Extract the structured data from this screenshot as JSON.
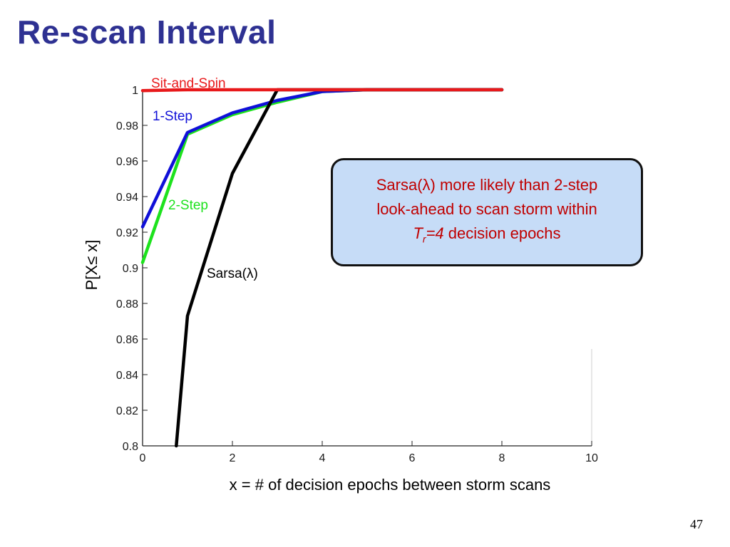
{
  "slide": {
    "title": "Re-scan Interval",
    "page_number": "47"
  },
  "callout": {
    "line1": "Sarsa(λ) more likely than 2-step",
    "line2": "look-ahead to scan storm within",
    "line3_T": "T",
    "line3_sub": "r",
    "line3_eq": "=4",
    "line3_rest": " decision epochs"
  },
  "chart_data": {
    "type": "line",
    "title": "",
    "xlabel": "x = # of decision epochs between storm scans",
    "ylabel": "P[X≤ x]",
    "xlim": [
      0,
      10
    ],
    "ylim": [
      0.8,
      1.0
    ],
    "xticks": [
      0,
      2,
      4,
      6,
      8,
      10
    ],
    "yticks": [
      0.8,
      0.82,
      0.84,
      0.86,
      0.88,
      0.9,
      0.92,
      0.94,
      0.96,
      0.98,
      1
    ],
    "ytick_labels": [
      "0.8",
      "0.82",
      "0.84",
      "0.86",
      "0.88",
      "0.9",
      "0.92",
      "0.94",
      "0.96",
      "0.98",
      "1"
    ],
    "grid": false,
    "legend": "inline labels",
    "series": [
      {
        "name": "Sit-and-Spin",
        "color": "#e8191b",
        "x": [
          0,
          1,
          2,
          3,
          4,
          5,
          6,
          7,
          8
        ],
        "y": [
          0.9995,
          1,
          1,
          1,
          1,
          1,
          1,
          1,
          1
        ]
      },
      {
        "name": "1-Step",
        "color": "#1010d8",
        "x": [
          0,
          1,
          2,
          3,
          4,
          5,
          6,
          7,
          8
        ],
        "y": [
          0.923,
          0.976,
          0.987,
          0.994,
          0.999,
          1,
          1,
          1,
          1
        ]
      },
      {
        "name": "2-Step",
        "color": "#1de21d",
        "x": [
          0,
          1,
          2,
          3,
          4,
          5,
          6,
          7,
          8
        ],
        "y": [
          0.903,
          0.975,
          0.986,
          0.993,
          0.999,
          1,
          1,
          1,
          1
        ]
      },
      {
        "name": "Sarsa(λ)",
        "color": "#000000",
        "x": [
          0.75,
          1,
          2,
          3,
          4,
          5,
          6,
          7,
          8
        ],
        "y": [
          0.8,
          0.873,
          0.953,
          1,
          1,
          1,
          1,
          1,
          1
        ]
      }
    ]
  }
}
